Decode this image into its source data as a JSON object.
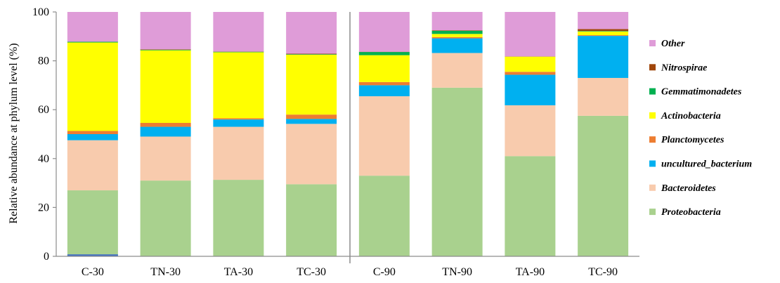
{
  "chart_data": {
    "type": "bar",
    "stacked": true,
    "ylabel": "Relative abundance at phylum level (%)",
    "xlabel": "",
    "ylim": [
      0,
      100
    ],
    "yticks": [
      0,
      20,
      40,
      60,
      80,
      100
    ],
    "grid": false,
    "legend_position": "right",
    "categories": [
      "C-30",
      "TN-30",
      "TA-30",
      "TC-30",
      "C-90",
      "TN-90",
      "TA-90",
      "TC-90"
    ],
    "group_divider_after": "TC-30",
    "series": [
      {
        "name": "Proteobacteria",
        "color": "#a9d18e",
        "values": [
          27,
          31,
          31.3,
          29.5,
          33,
          69,
          41,
          57.5
        ]
      },
      {
        "name": "Bacteroidetes",
        "color": "#f8cbad",
        "values": [
          20.5,
          18,
          21.7,
          24.7,
          32.5,
          14.2,
          20.8,
          15.5
        ]
      },
      {
        "name": "uncultured_bacterium",
        "color": "#00b0f0",
        "values": [
          2.5,
          4,
          3,
          2,
          4.5,
          6,
          12.5,
          17.2
        ]
      },
      {
        "name": "Planctomycetes",
        "color": "#ed7d31",
        "values": [
          1.3,
          1.6,
          0.5,
          1.8,
          1.3,
          0.5,
          1.2,
          0.3
        ]
      },
      {
        "name": "Actinobacteria",
        "color": "#ffff00",
        "values": [
          36.2,
          29.7,
          27,
          24.5,
          11,
          1.3,
          6.2,
          1.5
        ]
      },
      {
        "name": "Gemmatimonadetes",
        "color": "#00b050",
        "values": [
          0.3,
          0.2,
          0.2,
          0.2,
          1.3,
          1.3,
          0,
          0.2
        ]
      },
      {
        "name": "Nitrospirae",
        "color": "#a0460a",
        "values": [
          0,
          0.2,
          0.1,
          0.2,
          0.1,
          0.2,
          0.1,
          0.8
        ]
      },
      {
        "name": "Other",
        "color": "#df9cd8",
        "values": [
          12.2,
          15.3,
          16.2,
          17.1,
          16.3,
          7.5,
          18.2,
          7.0
        ]
      }
    ],
    "extra_marks": [
      {
        "category": "C-30",
        "color": "#4472c4",
        "from": 0,
        "to": 0.8
      }
    ]
  }
}
